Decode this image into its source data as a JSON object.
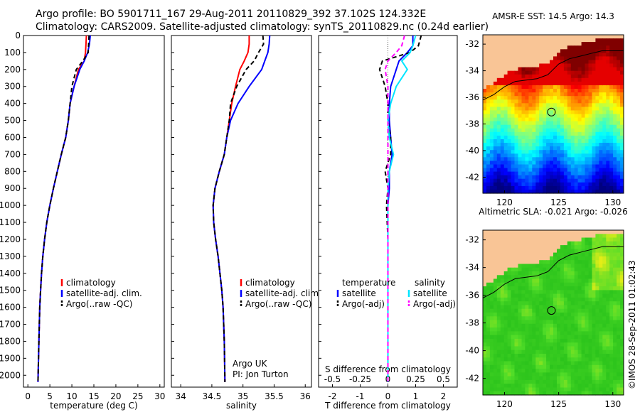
{
  "header": {
    "line1": "Argo profile: BO 5901711_167 29-Aug-2011 20110829_392 37.102S 124.332E",
    "line2": "Climatology: CARS2009. Satellite-adjusted climatology: synTS_20110829.nc (0.24d earlier)"
  },
  "credit": "©IMOS 28-Sep-2011 01:02:43",
  "colors": {
    "climatology": "#ff0000",
    "satellite": "#0000ff",
    "argo": "#000000",
    "sal_satellite": "#00e5ff",
    "sal_argo": "#ff00ff",
    "land": "#f9c596"
  },
  "chart_data": [
    {
      "id": "temperature",
      "type": "line",
      "xlabel": "temperature (deg C)",
      "ylabel": "",
      "xlim": [
        -1,
        31
      ],
      "ylim": [
        2070,
        0
      ],
      "xticks": [
        0,
        5,
        10,
        15,
        20,
        25,
        30
      ],
      "yticks": [
        0,
        100,
        200,
        300,
        400,
        500,
        600,
        700,
        800,
        900,
        1000,
        1100,
        1200,
        1300,
        1400,
        1500,
        1600,
        1700,
        1800,
        1900,
        2000
      ],
      "legend": [
        "climatology",
        "satellite-adj. clim.",
        "Argo(..raw -QC)"
      ],
      "series": [
        {
          "name": "climatology",
          "color": "#ff0000",
          "dash": "",
          "x": [
            13.3,
            13.2,
            13.1,
            12.8,
            11.5,
            10.5,
            9.6,
            9.2,
            8.6,
            7.6,
            6.7,
            5.8,
            5.0,
            4.3,
            3.8,
            3.4,
            3.1,
            2.9,
            2.7,
            2.5,
            2.3
          ],
          "y": [
            0,
            50,
            100,
            150,
            200,
            300,
            400,
            500,
            600,
            700,
            800,
            900,
            1000,
            1100,
            1200,
            1300,
            1400,
            1500,
            1600,
            1800,
            2040
          ]
        },
        {
          "name": "satellite-adj. clim.",
          "color": "#0000ff",
          "dash": "",
          "x": [
            14.2,
            14.0,
            13.6,
            12.8,
            11.8,
            10.5,
            9.6,
            9.2,
            8.6,
            7.6,
            6.7,
            5.8,
            5.0,
            4.3,
            3.8,
            3.4,
            3.1,
            2.9,
            2.7,
            2.5,
            2.3
          ],
          "y": [
            0,
            50,
            100,
            150,
            200,
            300,
            400,
            500,
            600,
            700,
            800,
            900,
            1000,
            1100,
            1200,
            1300,
            1400,
            1500,
            1600,
            1800,
            2040
          ]
        },
        {
          "name": "Argo(..raw -QC)",
          "color": "#000000",
          "dash": "6,4",
          "x": [
            13.9,
            13.8,
            13.7,
            12.5,
            11.0,
            10.0,
            9.6,
            9.2,
            8.6,
            7.6,
            6.7,
            5.8,
            5.0,
            4.3,
            3.8,
            3.4,
            3.1,
            2.9,
            2.7,
            2.5,
            2.3
          ],
          "y": [
            0,
            50,
            100,
            150,
            200,
            300,
            400,
            500,
            600,
            700,
            800,
            900,
            1000,
            1100,
            1200,
            1300,
            1400,
            1500,
            1600,
            1800,
            2040
          ]
        }
      ]
    },
    {
      "id": "salinity",
      "type": "line",
      "xlabel": "salinity",
      "ylabel": "",
      "xlim": [
        33.85,
        36.1
      ],
      "ylim": [
        2070,
        0
      ],
      "xticks": [
        34,
        34.5,
        35,
        35.5,
        36
      ],
      "legend": [
        "climatology",
        "satellite-adj. clim.",
        "Argo(..raw -QC)"
      ],
      "annotation": [
        "Argo UK",
        "PI: Jon Turton"
      ],
      "series": [
        {
          "name": "climatology",
          "color": "#ff0000",
          "dash": "",
          "x": [
            35.1,
            35.1,
            35.08,
            35.02,
            34.95,
            34.88,
            34.82,
            34.78,
            34.74,
            34.7,
            34.62,
            34.55,
            34.52,
            34.53,
            34.56,
            34.6,
            34.63,
            34.66,
            34.68,
            34.7,
            34.71
          ],
          "y": [
            0,
            50,
            100,
            150,
            200,
            300,
            400,
            500,
            600,
            700,
            800,
            900,
            1000,
            1100,
            1200,
            1300,
            1400,
            1500,
            1600,
            1800,
            2040
          ]
        },
        {
          "name": "satellite-adj. clim.",
          "color": "#0000ff",
          "dash": "",
          "x": [
            35.43,
            35.42,
            35.4,
            35.35,
            35.3,
            35.1,
            34.92,
            34.8,
            34.74,
            34.7,
            34.62,
            34.55,
            34.52,
            34.53,
            34.56,
            34.6,
            34.63,
            34.66,
            34.68,
            34.7,
            34.71
          ],
          "y": [
            0,
            50,
            100,
            150,
            200,
            300,
            400,
            500,
            600,
            700,
            800,
            900,
            1000,
            1100,
            1200,
            1300,
            1400,
            1500,
            1600,
            1800,
            2040
          ]
        },
        {
          "name": "Argo(..raw -QC)",
          "color": "#000000",
          "dash": "6,4",
          "x": [
            35.32,
            35.33,
            35.25,
            35.18,
            35.05,
            34.9,
            34.8,
            34.78,
            34.74,
            34.7,
            34.62,
            34.55,
            34.52,
            34.53,
            34.56,
            34.6,
            34.63,
            34.66,
            34.68,
            34.7,
            34.71
          ],
          "y": [
            0,
            50,
            100,
            150,
            200,
            300,
            400,
            500,
            600,
            700,
            800,
            900,
            1000,
            1100,
            1200,
            1300,
            1400,
            1500,
            1600,
            1800,
            2040
          ]
        }
      ]
    },
    {
      "id": "difference",
      "type": "line",
      "xlabel": "T difference from climatology",
      "xlabel_top": "S difference from climatology",
      "xlim": [
        -2.5,
        2.5
      ],
      "ylim": [
        2070,
        0
      ],
      "xticks": [
        -2,
        -1,
        0,
        1,
        2
      ],
      "xticklabels": [
        "-2",
        "-1",
        "0",
        "1",
        "2"
      ],
      "sticks": [
        -0.5,
        -0.25,
        0,
        0.25,
        0.5
      ],
      "sticklabels": [
        "-0.5",
        "-0.25",
        "0",
        "0.25",
        "0.5"
      ],
      "legend_left_title": "temperature",
      "legend_right_title": "salinity",
      "legend_left": [
        "satellite",
        "Argo(-adj)"
      ],
      "legend_right": [
        "satellite",
        "Argo(-adj)"
      ],
      "series": [
        {
          "name": "temperature satellite",
          "color": "#0000ff",
          "dash": "",
          "x": [
            0.9,
            0.9,
            0.7,
            0.4,
            0.3,
            0.1,
            0.05,
            0.05,
            0.1,
            0.15,
            0.05,
            0.05,
            0.0,
            0.0,
            0.0,
            0.0,
            0.0,
            0.0,
            0.0,
            0.0
          ],
          "y": [
            0,
            60,
            100,
            150,
            200,
            300,
            400,
            500,
            600,
            700,
            800,
            900,
            1000,
            1200,
            1400,
            1600,
            1800,
            1900,
            2000,
            2040
          ]
        },
        {
          "name": "temperature Argo(-adj)",
          "color": "#000000",
          "dash": "6,4",
          "x": [
            1.2,
            1.1,
            0.8,
            -0.2,
            -0.3,
            -0.1,
            0.0,
            0.0,
            0.1,
            0.1,
            -0.1,
            0.0,
            -0.05,
            0.0,
            0.0,
            0.0,
            0.0,
            0.0,
            0.0,
            0.0
          ],
          "y": [
            0,
            60,
            100,
            150,
            200,
            300,
            400,
            500,
            600,
            700,
            800,
            900,
            1000,
            1200,
            1400,
            1600,
            1800,
            1900,
            2000,
            2040
          ]
        },
        {
          "name": "salinity satellite",
          "color": "#00e5ff",
          "dash": "",
          "x": [
            1.0,
            0.9,
            0.8,
            0.5,
            0.7,
            0.3,
            0.1,
            0.0,
            0.05,
            0.2,
            0.05,
            0.0,
            0.0,
            0.0,
            0.0,
            0.0,
            0.0,
            0.0,
            0.0,
            0.0
          ],
          "y": [
            0,
            60,
            100,
            150,
            200,
            300,
            400,
            500,
            600,
            700,
            800,
            900,
            1000,
            1200,
            1400,
            1600,
            1800,
            1900,
            2000,
            2040
          ]
        },
        {
          "name": "salinity Argo(-adj)",
          "color": "#ff00ff",
          "dash": "6,4",
          "x": [
            0.6,
            0.5,
            0.3,
            0.0,
            -0.1,
            0.0,
            0.0,
            0.0,
            0.0,
            0.0,
            0.0,
            0.0,
            0.0,
            0.0,
            0.0,
            0.0,
            0.0,
            0.0,
            0.0,
            0.0
          ],
          "y": [
            0,
            60,
            100,
            150,
            200,
            300,
            400,
            500,
            600,
            700,
            800,
            900,
            1000,
            1200,
            1400,
            1600,
            1800,
            1900,
            2000,
            2040
          ]
        }
      ]
    },
    {
      "id": "sst_map",
      "type": "heatmap",
      "title": "AMSR-E SST: 14.5 Argo: 14.3",
      "xlim": [
        118,
        131
      ],
      "ylim": [
        -43.2,
        -31.3
      ],
      "xticks": [
        120,
        125,
        130
      ],
      "yticks": [
        -32,
        -34,
        -36,
        -38,
        -40,
        -42
      ],
      "marker": {
        "x": 124.332,
        "y": -37.102
      },
      "palette": "jet"
    },
    {
      "id": "sla_map",
      "type": "heatmap",
      "title": "Altimetric SLA: -0.021 Argo: -0.026",
      "xlim": [
        118,
        131
      ],
      "ylim": [
        -43.2,
        -31.3
      ],
      "xticks": [
        120,
        125,
        130
      ],
      "yticks": [
        -32,
        -34,
        -36,
        -38,
        -40,
        -42
      ],
      "marker": {
        "x": 124.332,
        "y": -37.102
      },
      "palette": "green"
    }
  ]
}
